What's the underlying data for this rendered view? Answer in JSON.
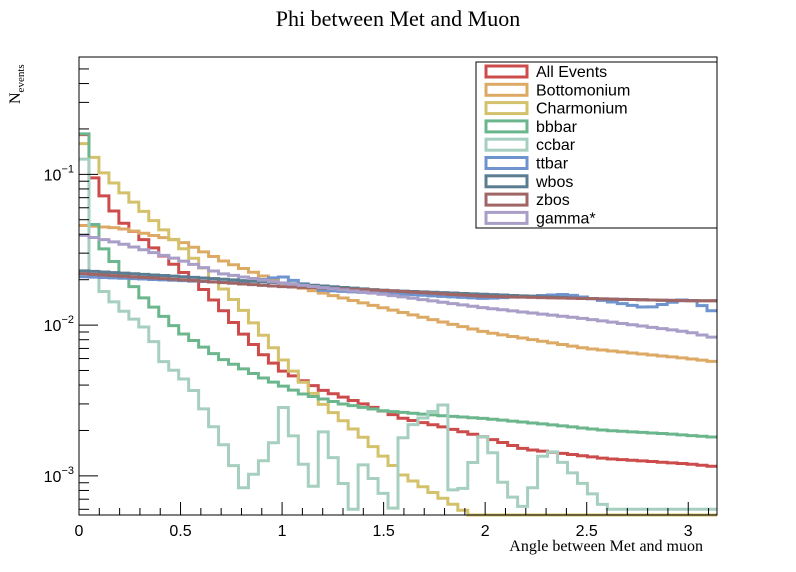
{
  "chart_data": {
    "type": "line",
    "title": "Phi between Met and Muon",
    "xlabel": "Angle between Met and muon",
    "ylabel_main": "N",
    "ylabel_sub": "events",
    "xlim": [
      0,
      3.1416
    ],
    "ylim": [
      0.00055,
      0.6
    ],
    "yscale": "log",
    "grid": false,
    "legend_position": "top-right",
    "x_ticks": [
      0,
      0.5,
      1,
      1.5,
      2,
      2.5,
      3
    ],
    "x_tick_labels": [
      "0",
      "0.5",
      "1",
      "1.5",
      "2",
      "2.5",
      "3"
    ],
    "y_ticks": [
      {
        "base": "10",
        "exp": "−3",
        "value": 0.001
      },
      {
        "base": "10",
        "exp": "−2",
        "value": 0.01
      },
      {
        "base": "10",
        "exp": "−1",
        "value": 0.1
      }
    ],
    "n_bins": 64,
    "series": [
      {
        "name": "All Events",
        "color": "#cc4c4c",
        "x": [
          0,
          0.05,
          0.1,
          0.2,
          0.4,
          0.6,
          0.7,
          0.8,
          0.9,
          1.0,
          1.2,
          1.4,
          1.6,
          1.8,
          2.0,
          2.2,
          2.4,
          2.6,
          2.8,
          3.0,
          3.14
        ],
        "values": [
          0.3,
          0.11,
          0.08,
          0.05,
          0.03,
          0.018,
          0.013,
          0.009,
          0.0065,
          0.005,
          0.0037,
          0.003,
          0.0024,
          0.0021,
          0.0018,
          0.0015,
          0.0014,
          0.0013,
          0.00125,
          0.0012,
          0.00115
        ]
      },
      {
        "name": "Bottomonium",
        "color": "#ddaa66",
        "x": [
          0,
          0.2,
          0.5,
          0.7,
          1.0,
          1.5,
          2.0,
          2.5,
          3.0,
          3.14
        ],
        "values": [
          0.046,
          0.044,
          0.036,
          0.027,
          0.019,
          0.013,
          0.009,
          0.007,
          0.006,
          0.0057
        ]
      },
      {
        "name": "Charmonium",
        "color": "#d4c16b",
        "x": [
          0,
          0.05,
          0.1,
          0.2,
          0.4,
          0.6,
          0.8,
          1.0,
          1.2,
          1.4,
          1.6,
          1.8,
          1.9,
          2.0,
          3.14
        ],
        "values": [
          0.17,
          0.15,
          0.11,
          0.08,
          0.045,
          0.025,
          0.013,
          0.006,
          0.003,
          0.0018,
          0.001,
          0.0007,
          0.00058,
          0.0005,
          0.0005
        ]
      },
      {
        "name": "bbbar",
        "color": "#6cb68e",
        "x": [
          0,
          0.05,
          0.1,
          0.3,
          0.5,
          0.7,
          0.9,
          1.1,
          1.3,
          1.5,
          1.8,
          2.0,
          2.3,
          2.6,
          2.9,
          3.14
        ],
        "values": [
          0.55,
          0.06,
          0.035,
          0.016,
          0.009,
          0.006,
          0.0045,
          0.0035,
          0.003,
          0.0027,
          0.0025,
          0.0024,
          0.0022,
          0.002,
          0.0019,
          0.0018
        ]
      },
      {
        "name": "ccbar",
        "color": "#a6cfbf",
        "x": [
          0,
          0.05,
          0.1,
          0.2,
          0.35,
          0.4,
          0.55,
          0.6,
          0.75,
          0.8,
          0.95,
          1.0,
          1.15,
          1.2,
          1.35,
          1.4,
          1.55,
          1.6,
          1.8,
          1.85,
          2.0,
          2.1,
          2.2,
          2.3,
          2.6,
          2.9,
          3.14
        ],
        "values": [
          0.6,
          0.025,
          0.018,
          0.013,
          0.009,
          0.006,
          0.004,
          0.003,
          0.0013,
          0.0008,
          0.0015,
          0.003,
          0.0008,
          0.002,
          0.0006,
          0.0012,
          0.0006,
          0.002,
          0.003,
          0.0006,
          0.002,
          0.0008,
          0.0006,
          0.0016,
          0.0006,
          0.0006,
          0.0006
        ]
      },
      {
        "name": "ttbar",
        "color": "#6f93cd",
        "x": [
          0,
          0.4,
          0.8,
          1.0,
          1.2,
          1.6,
          2.0,
          2.4,
          2.8,
          3.0,
          3.14
        ],
        "values": [
          0.021,
          0.02,
          0.019,
          0.021,
          0.017,
          0.016,
          0.015,
          0.016,
          0.013,
          0.015,
          0.012
        ]
      },
      {
        "name": "wbos",
        "color": "#5a7d92",
        "x": [
          0,
          0.5,
          1.0,
          1.5,
          2.0,
          2.5,
          3.0,
          3.14
        ],
        "values": [
          0.023,
          0.021,
          0.019,
          0.017,
          0.016,
          0.015,
          0.0145,
          0.0145
        ]
      },
      {
        "name": "zbos",
        "color": "#a06666",
        "x": [
          0,
          0.5,
          1.0,
          1.5,
          2.0,
          2.5,
          3.0,
          3.14
        ],
        "values": [
          0.022,
          0.02,
          0.018,
          0.017,
          0.0155,
          0.015,
          0.0145,
          0.0145
        ]
      },
      {
        "name": "gamma*",
        "color": "#a99ec8",
        "x": [
          0,
          0.2,
          0.5,
          0.7,
          1.0,
          1.5,
          2.0,
          2.5,
          3.0,
          3.14
        ],
        "values": [
          0.04,
          0.035,
          0.027,
          0.022,
          0.019,
          0.016,
          0.013,
          0.011,
          0.009,
          0.0082
        ]
      }
    ]
  }
}
